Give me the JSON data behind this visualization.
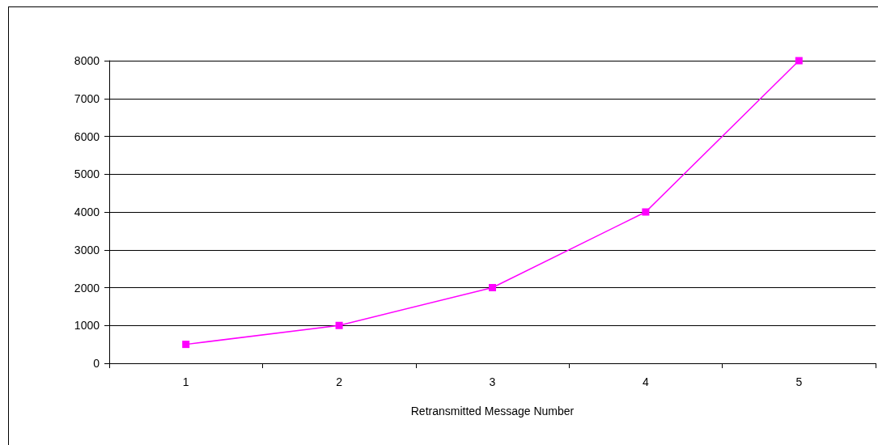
{
  "chart_data": {
    "type": "line",
    "xlabel": "Retransmitted Message Number",
    "categories": [
      "1",
      "2",
      "3",
      "4",
      "5"
    ],
    "series": [
      {
        "color": "#ff00ff",
        "values": [
          500,
          1000,
          2000,
          4000,
          8000
        ]
      }
    ],
    "ylim": [
      0,
      8000
    ],
    "yticks": [
      0,
      1000,
      2000,
      3000,
      4000,
      5000,
      6000,
      7000,
      8000
    ],
    "grid": "y",
    "marker": "square",
    "line_style": "solid"
  }
}
